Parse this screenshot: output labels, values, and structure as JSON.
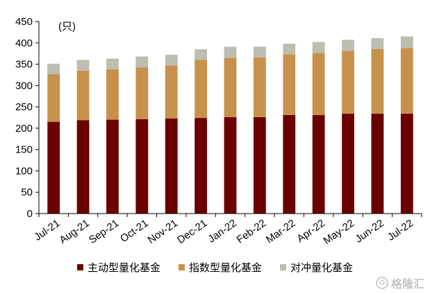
{
  "chart_data": {
    "type": "bar",
    "stacked": true,
    "unit": "(只)",
    "categories": [
      "Jul-21",
      "Aug-21",
      "Sep-21",
      "Oct-21",
      "Nov-21",
      "Dec-21",
      "Jan-22",
      "Feb-22",
      "Mar-22",
      "Apr-22",
      "May-22",
      "Jun-22",
      "Jul-22"
    ],
    "series": [
      {
        "name": "主动型量化基金",
        "color": "#6b0000",
        "values": [
          215,
          219,
          220,
          221,
          223,
          224,
          226,
          226,
          231,
          231,
          234,
          234,
          234
        ]
      },
      {
        "name": "指数型量化基金",
        "color": "#c8914b",
        "values": [
          112,
          116,
          118,
          121,
          124,
          136,
          139,
          140,
          142,
          145,
          147,
          151,
          154
        ]
      },
      {
        "name": "对冲量化基金",
        "color": "#bdbdb2",
        "values": [
          24,
          25,
          25,
          26,
          25,
          25,
          26,
          25,
          25,
          26,
          26,
          26,
          27
        ]
      }
    ],
    "ylim": [
      0,
      450
    ],
    "yticks": [
      0,
      50,
      100,
      150,
      200,
      250,
      300,
      350,
      400,
      450
    ],
    "grid": false,
    "legend": "bottom"
  },
  "watermark": {
    "text": "格隆汇",
    "icon": "G"
  }
}
